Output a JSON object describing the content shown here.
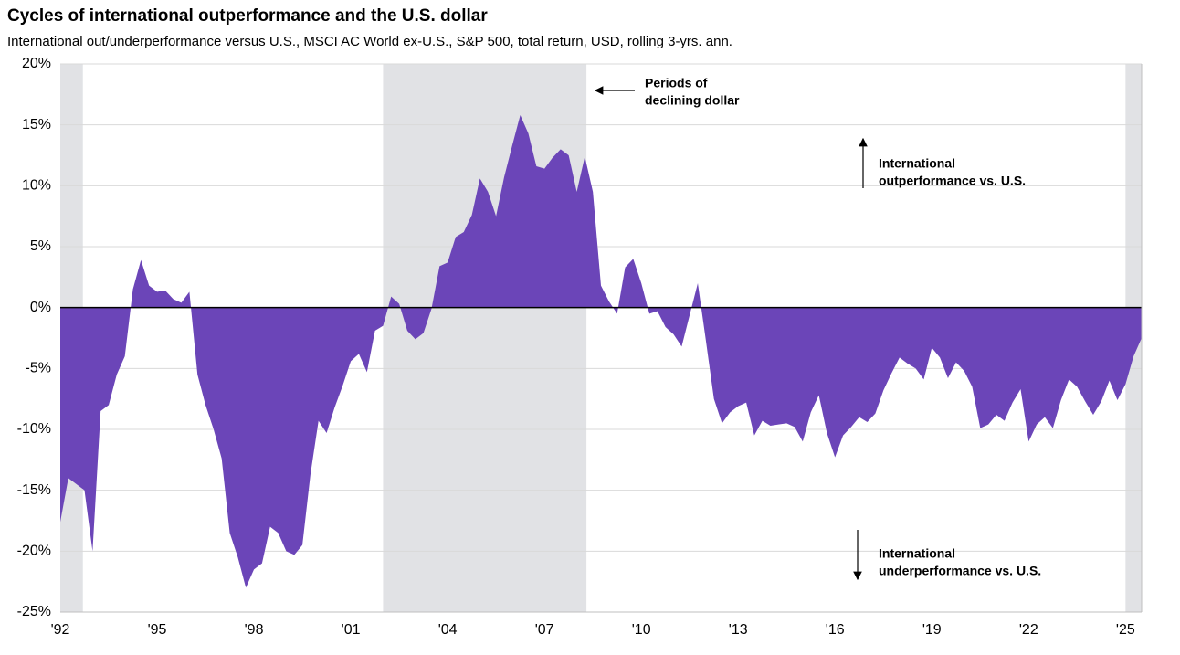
{
  "chart_data": {
    "type": "area",
    "title": "Cycles of international outperformance and the U.S. dollar",
    "subtitle": "International out/underperformance versus U.S., MSCI AC World ex-U.S., S&P 500, total return, USD, rolling 3-yrs. ann.",
    "xlim": [
      1992,
      2025.5
    ],
    "ylim": [
      -25,
      20
    ],
    "xticks": [
      {
        "value": 1992,
        "label": "'92"
      },
      {
        "value": 1995,
        "label": "'95"
      },
      {
        "value": 1998,
        "label": "'98"
      },
      {
        "value": 2001,
        "label": "'01"
      },
      {
        "value": 2004,
        "label": "'04"
      },
      {
        "value": 2007,
        "label": "'07"
      },
      {
        "value": 2010,
        "label": "'10"
      },
      {
        "value": 2013,
        "label": "'13"
      },
      {
        "value": 2016,
        "label": "'16"
      },
      {
        "value": 2019,
        "label": "'19"
      },
      {
        "value": 2022,
        "label": "'22"
      },
      {
        "value": 2025,
        "label": "'25"
      }
    ],
    "yticks": [
      {
        "value": 20,
        "label": "20%"
      },
      {
        "value": 15,
        "label": "15%"
      },
      {
        "value": 10,
        "label": "10%"
      },
      {
        "value": 5,
        "label": "5%"
      },
      {
        "value": 0,
        "label": "0%"
      },
      {
        "value": -5,
        "label": "-5%"
      },
      {
        "value": -10,
        "label": "-10%"
      },
      {
        "value": -15,
        "label": "-15%"
      },
      {
        "value": -20,
        "label": "-20%"
      },
      {
        "value": -25,
        "label": "-25%"
      }
    ],
    "grid": true,
    "shaded_periods": [
      [
        1992,
        1992.7
      ],
      [
        2002,
        2008.3
      ],
      [
        2025,
        2025.5
      ]
    ],
    "shade_color": "#e1e2e5",
    "annotations": [
      {
        "lines": [
          "Periods of",
          "declining dollar"
        ]
      },
      {
        "lines": [
          "International",
          "outperformance vs. U.S."
        ]
      },
      {
        "lines": [
          "International",
          "underperformance vs. U.S."
        ]
      }
    ],
    "x": [
      1992,
      1992.25,
      1992.5,
      1992.75,
      1993,
      1993.25,
      1993.5,
      1993.75,
      1994,
      1994.25,
      1994.5,
      1994.75,
      1995,
      1995.25,
      1995.5,
      1995.75,
      1996,
      1996.25,
      1996.5,
      1996.75,
      1997,
      1997.25,
      1997.5,
      1997.75,
      1998,
      1998.25,
      1998.5,
      1998.75,
      1999,
      1999.25,
      1999.5,
      1999.75,
      2000,
      2000.25,
      2000.5,
      2000.75,
      2001,
      2001.25,
      2001.5,
      2001.75,
      2002,
      2002.25,
      2002.5,
      2002.75,
      2003,
      2003.25,
      2003.5,
      2003.75,
      2004,
      2004.25,
      2004.5,
      2004.75,
      2005,
      2005.25,
      2005.5,
      2005.75,
      2006,
      2006.25,
      2006.5,
      2006.75,
      2007,
      2007.25,
      2007.5,
      2007.75,
      2008,
      2008.25,
      2008.5,
      2008.75,
      2009,
      2009.25,
      2009.5,
      2009.75,
      2010,
      2010.25,
      2010.5,
      2010.75,
      2011,
      2011.25,
      2011.5,
      2011.75,
      2012,
      2012.25,
      2012.5,
      2012.75,
      2013,
      2013.25,
      2013.5,
      2013.75,
      2014,
      2014.25,
      2014.5,
      2014.75,
      2015,
      2015.25,
      2015.5,
      2015.75,
      2016,
      2016.25,
      2016.5,
      2016.75,
      2017,
      2017.25,
      2017.5,
      2017.75,
      2018,
      2018.25,
      2018.5,
      2018.75,
      2019,
      2019.25,
      2019.5,
      2019.75,
      2020,
      2020.25,
      2020.5,
      2020.75,
      2021,
      2021.25,
      2021.5,
      2021.75,
      2022,
      2022.25,
      2022.5,
      2022.75,
      2023,
      2023.25,
      2023.5,
      2023.75,
      2024,
      2024.25,
      2024.5,
      2024.75,
      2025,
      2025.25,
      2025.5
    ],
    "series": [
      {
        "name": "International out/underperformance",
        "color": "#6b45b8",
        "values": [
          -17.6,
          -14,
          -14.5,
          -15,
          -20,
          -8.5,
          -8,
          -5.5,
          -4,
          1.5,
          3.9,
          1.8,
          1.3,
          1.4,
          0.7,
          0.4,
          1.3,
          -5.5,
          -8,
          -10,
          -12.4,
          -18.5,
          -20.5,
          -23,
          -21.5,
          -21,
          -18,
          -18.5,
          -20,
          -20.3,
          -19.5,
          -13.7,
          -9.3,
          -10.3,
          -8.2,
          -6.4,
          -4.4,
          -3.8,
          -5.3,
          -1.9,
          -1.5,
          0.9,
          0.3,
          -1.9,
          -2.6,
          -2.1,
          -0.1,
          3.4,
          3.7,
          5.8,
          6.2,
          7.6,
          10.6,
          9.5,
          7.5,
          10.7,
          13.3,
          15.8,
          14.3,
          11.6,
          11.4,
          12.3,
          13,
          12.5,
          9.5,
          12.4,
          9.5,
          1.8,
          0.5,
          -0.5,
          3.3,
          4,
          2,
          -0.5,
          -0.3,
          -1.6,
          -2.2,
          -3.2,
          -0.6,
          2,
          -2.7,
          -7.5,
          -9.5,
          -8.6,
          -8.1,
          -7.8,
          -10.5,
          -9.3,
          -9.7,
          -9.6,
          -9.5,
          -9.8,
          -11,
          -8.6,
          -7.2,
          -10.3,
          -12.3,
          -10.5,
          -9.8,
          -9,
          -9.4,
          -8.7,
          -6.8,
          -5.4,
          -4.1,
          -4.6,
          -5,
          -5.9,
          -3.3,
          -4.1,
          -5.8,
          -4.5,
          -5.2,
          -6.5,
          -9.9,
          -9.6,
          -8.8,
          -9.3,
          -7.8,
          -6.7,
          -11,
          -9.6,
          -9,
          -9.9,
          -7.6,
          -5.9,
          -6.5,
          -7.7,
          -8.8,
          -7.7,
          -6,
          -7.6,
          -6.3,
          -4,
          -2.5
        ]
      }
    ]
  }
}
